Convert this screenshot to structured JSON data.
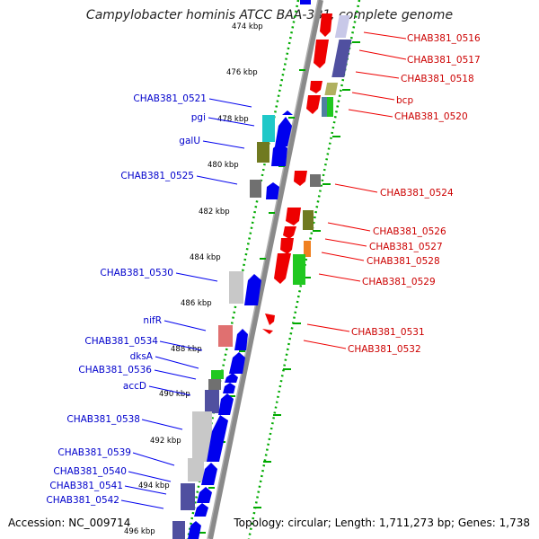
{
  "title": "Campylobacter hominis ATCC BAA-381, complete genome",
  "accession": "Accession: NC_009714",
  "topology": "Topology: circular; Length: 1,711,273 bp; Genes: 1,738",
  "kbp_ticks": [
    "474 kbp",
    "476 kbp",
    "478 kbp",
    "480 kbp",
    "482 kbp",
    "484 kbp",
    "486 kbp",
    "488 kbp",
    "490 kbp",
    "492 kbp",
    "494 kbp",
    "496 kbp"
  ],
  "right_labels": [
    "CHAB381_0516",
    "CHAB381_0517",
    "CHAB381_0518",
    "bcp",
    "CHAB381_0520",
    "CHAB381_0524",
    "CHAB381_0526",
    "CHAB381_0527",
    "CHAB381_0528",
    "CHAB381_0529",
    "CHAB381_0531",
    "CHAB381_0532"
  ],
  "left_labels": [
    "CHAB381_0521",
    "pgi",
    "galU",
    "CHAB381_0525",
    "CHAB381_0530",
    "nifR",
    "CHAB381_0534",
    "dksA",
    "CHAB381_0536",
    "accD",
    "CHAB381_0538",
    "CHAB381_0539",
    "CHAB381_0540",
    "CHAB381_0541",
    "CHAB381_0542"
  ],
  "colors": {
    "forward_strand": "#0000ee",
    "reverse_strand": "#ee0000",
    "backbone": "#808080",
    "tick_green": "#00aa00",
    "cog_purple": "#5050a0",
    "cog_cyan": "#20c8c8",
    "cog_olive": "#707a20",
    "cog_gray": "#707070",
    "cog_lightgray": "#c8c8c8",
    "cog_pink": "#e07070",
    "cog_green": "#20c820",
    "cog_orange": "#f08020",
    "cog_khaki": "#b0b060",
    "cog_lavender": "#c8c8e8"
  }
}
